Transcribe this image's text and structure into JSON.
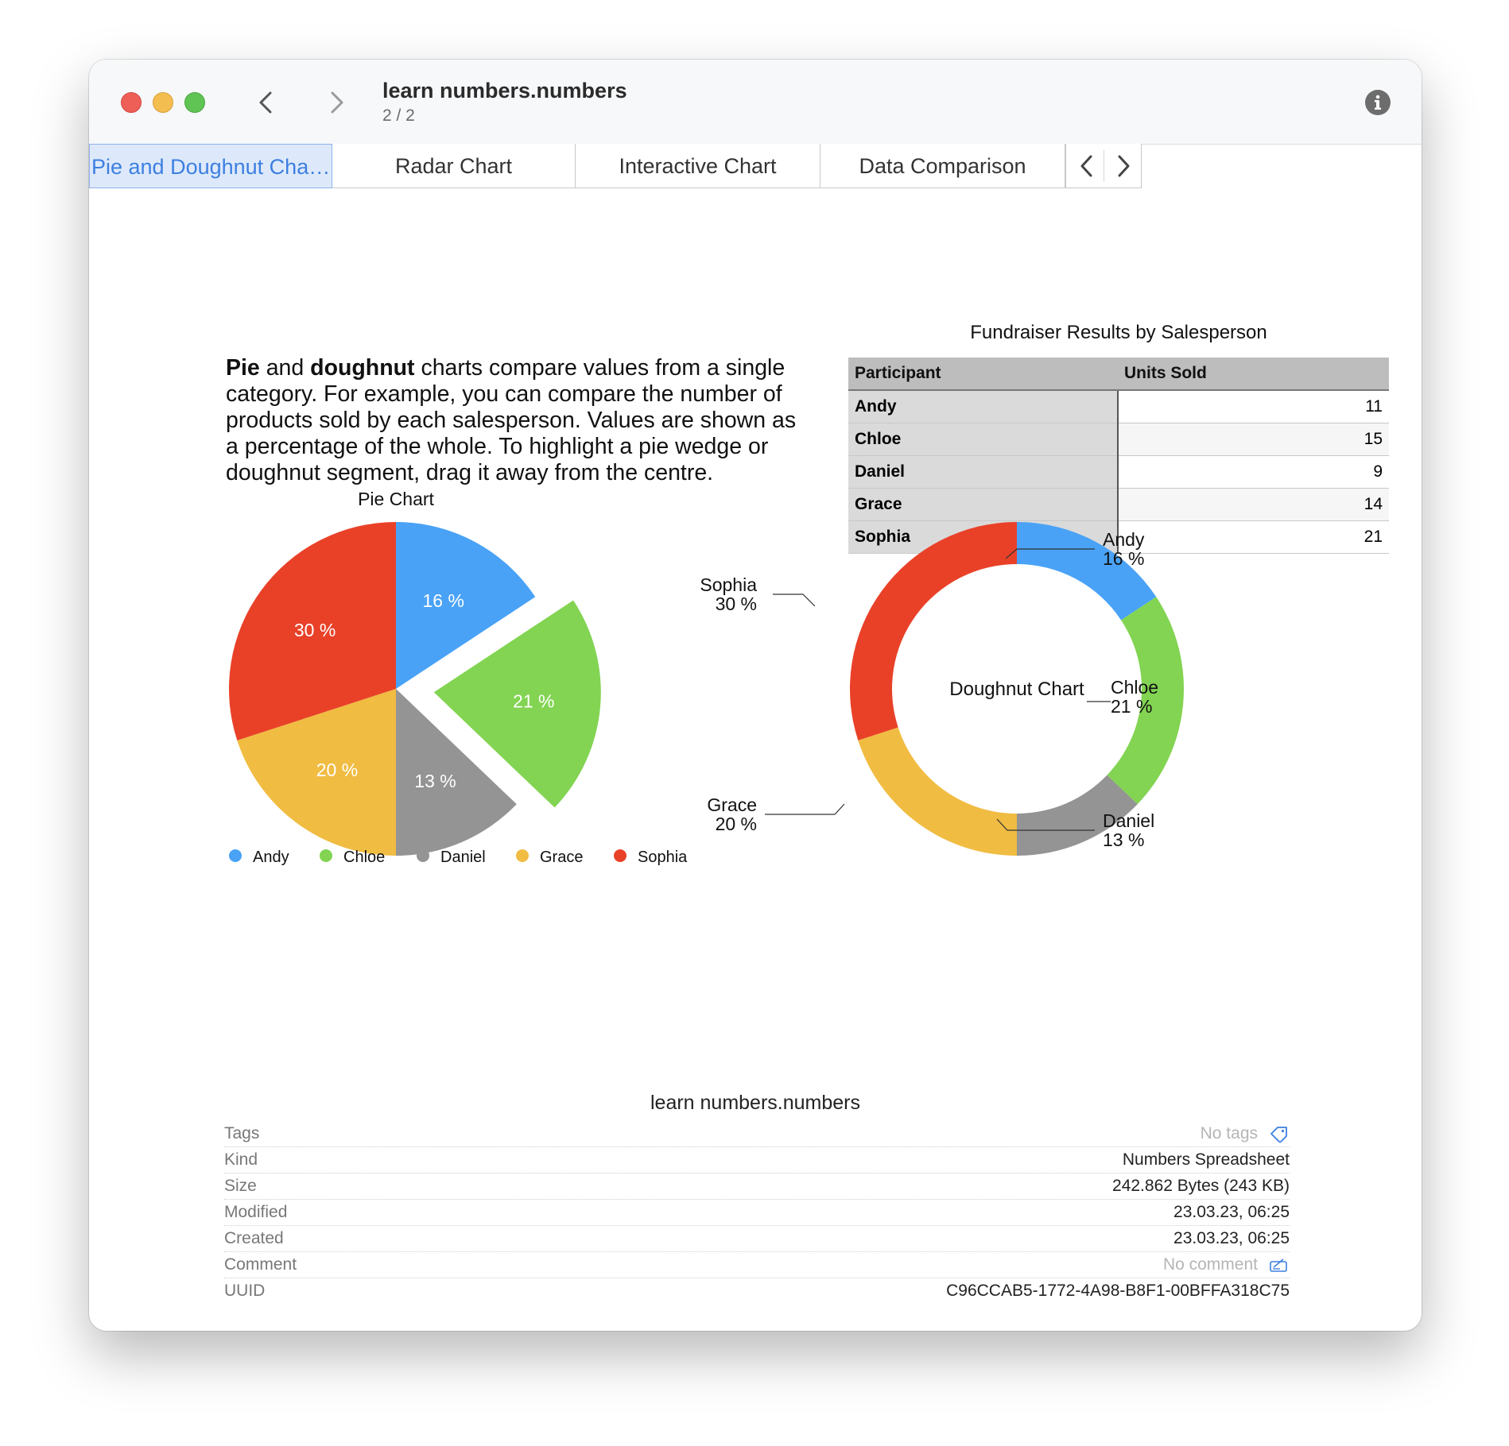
{
  "window": {
    "title": "learn numbers.numbers",
    "subtitle": "2 / 2"
  },
  "tabs": [
    {
      "label": "Pie and Doughnut Char..."
    },
    {
      "label": "Radar Chart"
    },
    {
      "label": "Interactive Chart"
    },
    {
      "label": "Data Comparison"
    }
  ],
  "description": {
    "bold1": "Pie",
    "text1": " and ",
    "bold2": "doughnut",
    "text2": " charts compare values from a single category. For example, you can compare the number of products sold by each salesperson. Values are shown as a percentage of the whole. To highlight a pie wedge or doughnut segment, drag it away from the centre."
  },
  "table": {
    "title": "Fundraiser Results by Salesperson",
    "headers": [
      "Participant",
      "Units Sold"
    ],
    "rows": [
      {
        "name": "Andy",
        "value": "11"
      },
      {
        "name": "Chloe",
        "value": "15"
      },
      {
        "name": "Daniel",
        "value": "9"
      },
      {
        "name": "Grace",
        "value": "14"
      },
      {
        "name": "Sophia",
        "value": "21"
      }
    ]
  },
  "chart_data": [
    {
      "type": "pie",
      "title": "Pie Chart",
      "categories": [
        "Andy",
        "Chloe",
        "Daniel",
        "Grace",
        "Sophia"
      ],
      "values": [
        11,
        15,
        9,
        14,
        21
      ],
      "labels": [
        "16 %",
        "21 %",
        "13 %",
        "20 %",
        "30 %"
      ],
      "colors": [
        "#49a2f6",
        "#82d452",
        "#949494",
        "#f0bc42",
        "#e94128"
      ],
      "exploded": "Chloe",
      "legend": "bottom"
    },
    {
      "type": "doughnut",
      "title": "Doughnut Chart",
      "categories": [
        "Andy",
        "Chloe",
        "Daniel",
        "Grace",
        "Sophia"
      ],
      "values": [
        11,
        15,
        9,
        14,
        21
      ],
      "labels": [
        "16 %",
        "21 %",
        "13 %",
        "20 %",
        "30 %"
      ],
      "colors": [
        "#49a2f6",
        "#82d452",
        "#949494",
        "#f0bc42",
        "#e94128"
      ],
      "legend": "callouts"
    }
  ],
  "footer": {
    "filename": "learn numbers.numbers",
    "rows": [
      {
        "key": "Tags",
        "value": "No tags",
        "muted": true,
        "icon": "tag-icon"
      },
      {
        "key": "Kind",
        "value": "Numbers Spreadsheet"
      },
      {
        "key": "Size",
        "value": "242.862 Bytes (243 KB)"
      },
      {
        "key": "Modified",
        "value": "23.03.23, 06:25"
      },
      {
        "key": "Created",
        "value": "23.03.23, 06:25"
      },
      {
        "key": "Comment",
        "value": "No comment",
        "muted": true,
        "icon": "edit-comment-icon"
      },
      {
        "key": "UUID",
        "value": "C96CCAB5-1772-4A98-B8F1-00BFFA318C75"
      }
    ]
  }
}
